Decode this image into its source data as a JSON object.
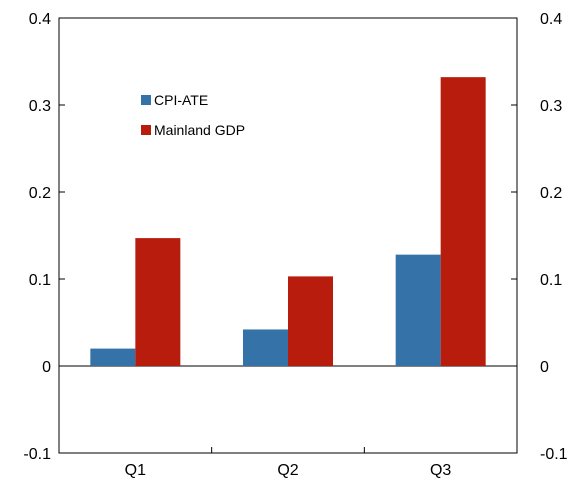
{
  "chart_data": {
    "type": "bar",
    "categories": [
      "Q1",
      "Q2",
      "Q3"
    ],
    "series": [
      {
        "name": "CPI-ATE",
        "values": [
          0.02,
          0.042,
          0.128
        ],
        "color": "#3572A8"
      },
      {
        "name": "Mainland GDP",
        "values": [
          0.147,
          0.103,
          0.332
        ],
        "color": "#B71C0C"
      }
    ],
    "ylim": [
      -0.1,
      0.4
    ],
    "yticks": [
      "-0.1",
      "0",
      "0.1",
      "0.2",
      "0.3",
      "0.4"
    ],
    "ytick_values": [
      -0.1,
      0,
      0.1,
      0.2,
      0.3,
      0.4
    ],
    "secondary_y_axis": true,
    "legend_position": "upper-left inside plot",
    "grid": false
  }
}
